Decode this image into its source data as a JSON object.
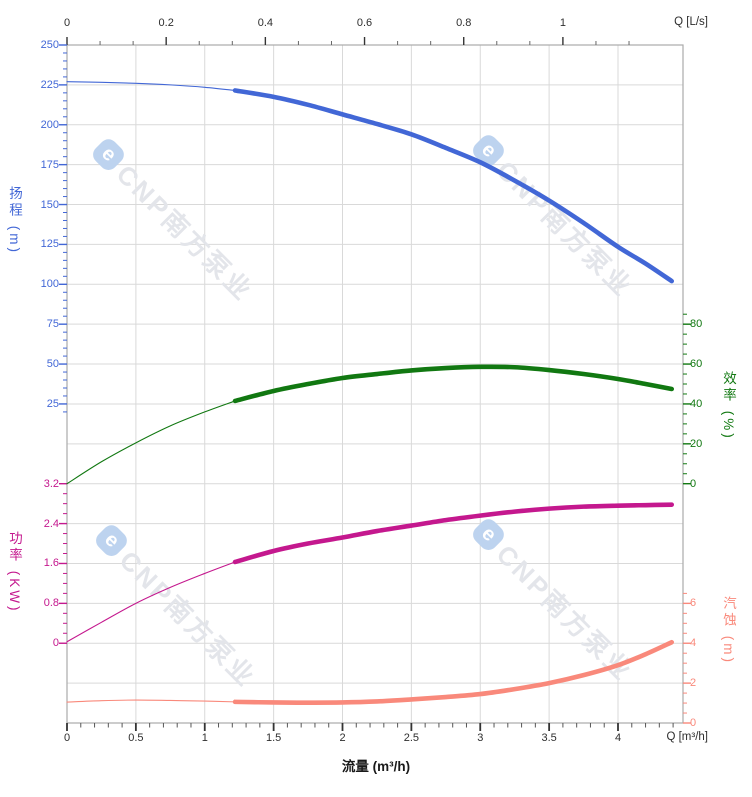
{
  "watermark": {
    "text": "CNP南方泵业",
    "logo_letter": "e",
    "text_color": "#e3e5ea",
    "logo_color": "#bdd3ef"
  },
  "chart_data": {
    "type": "line",
    "title": "",
    "grid": true,
    "thin_to_thick_at_q": 1.22,
    "x_bottom_axis": {
      "title": "流量 (m³/h)",
      "end_label": "Q [m³/h]",
      "range": [
        0,
        4.47
      ],
      "tick_values": [
        0,
        0.5,
        1,
        1.5,
        2,
        2.5,
        3,
        3.5,
        4
      ],
      "tick_labels": [
        "0",
        "0.5",
        "1",
        "1.5",
        "2",
        "2.5",
        "3",
        "3.5",
        "4"
      ],
      "minor_step": 0.1,
      "color": "#2e2e2e"
    },
    "x_top_axis": {
      "end_label": "Q [L/s]",
      "units_to_m3h": 3.6,
      "range": [
        0,
        1.24
      ],
      "tick_values": [
        0,
        0.2,
        0.4,
        0.6,
        0.8,
        1
      ],
      "tick_labels": [
        "0",
        "0.2",
        "0.4",
        "0.6",
        "0.8",
        "1"
      ],
      "minor_divisions": 3,
      "color": "#2e2e2e"
    },
    "y_axes": {
      "head": {
        "title": "扬程 (m)",
        "side": "left",
        "color": "#4267d6",
        "range": [
          0,
          250
        ],
        "tick_values": [
          250,
          225,
          200,
          175,
          150,
          125,
          100,
          75,
          50,
          25
        ],
        "tick_labels": [
          "250",
          "225",
          "200",
          "175",
          "150",
          "125",
          "100",
          "75",
          "50",
          "25"
        ],
        "minor_step": 5,
        "minor_range": [
          20,
          250
        ]
      },
      "power": {
        "title": "功率 (KW)",
        "side": "left",
        "color": "#c4188e",
        "range": [
          0,
          3.2
        ],
        "tick_values": [
          3.2,
          2.4,
          1.6,
          0.8,
          0
        ],
        "tick_labels": [
          "3.2",
          "2.4",
          "1.6",
          "0.8",
          "0"
        ],
        "minor_step": 0.2,
        "minor_range": [
          0,
          3.2
        ]
      },
      "efficiency": {
        "title": "效率 (%)",
        "side": "right",
        "color": "#117811",
        "range": [
          0,
          80
        ],
        "tick_values": [
          80,
          60,
          40,
          20,
          0
        ],
        "tick_labels": [
          "80",
          "60",
          "40",
          "20",
          "0"
        ],
        "minor_step": 5,
        "minor_range": [
          0,
          85
        ]
      },
      "npsh": {
        "title": "汽蚀 (m)",
        "side": "right",
        "color": "#f9897b",
        "range": [
          0,
          6
        ],
        "tick_values": [
          6,
          4,
          2,
          0
        ],
        "tick_labels": [
          "6",
          "4",
          "2",
          "0"
        ],
        "minor_step": 0.5,
        "minor_range": [
          0,
          6.5
        ]
      }
    },
    "series": [
      {
        "name": "head",
        "axis": "head",
        "color": "#4267d6",
        "points": [
          [
            0,
            227
          ],
          [
            0.25,
            226.6
          ],
          [
            0.5,
            226
          ],
          [
            0.75,
            225
          ],
          [
            1,
            223.5
          ],
          [
            1.22,
            221.5
          ],
          [
            1.5,
            217.5
          ],
          [
            1.75,
            212.5
          ],
          [
            2,
            206.5
          ],
          [
            2.25,
            200.5
          ],
          [
            2.5,
            194
          ],
          [
            2.75,
            185.5
          ],
          [
            3,
            176.5
          ],
          [
            3.25,
            165
          ],
          [
            3.5,
            152.5
          ],
          [
            3.75,
            138.5
          ],
          [
            4,
            123.5
          ],
          [
            4.2,
            113
          ],
          [
            4.39,
            102
          ]
        ]
      },
      {
        "name": "efficiency",
        "axis": "efficiency",
        "color": "#117811",
        "points": [
          [
            0,
            0
          ],
          [
            0.25,
            11
          ],
          [
            0.5,
            20.5
          ],
          [
            0.75,
            29
          ],
          [
            1,
            36
          ],
          [
            1.22,
            41.5
          ],
          [
            1.5,
            46.5
          ],
          [
            1.75,
            50
          ],
          [
            2,
            53
          ],
          [
            2.25,
            55
          ],
          [
            2.5,
            56.8
          ],
          [
            2.75,
            58
          ],
          [
            3,
            58.6
          ],
          [
            3.25,
            58.4
          ],
          [
            3.5,
            57
          ],
          [
            3.75,
            55
          ],
          [
            4,
            52.5
          ],
          [
            4.2,
            50
          ],
          [
            4.39,
            47.5
          ]
        ]
      },
      {
        "name": "power",
        "axis": "power",
        "color": "#c4188e",
        "points": [
          [
            0,
            0.03
          ],
          [
            0.25,
            0.42
          ],
          [
            0.5,
            0.8
          ],
          [
            0.75,
            1.12
          ],
          [
            1,
            1.4
          ],
          [
            1.22,
            1.63
          ],
          [
            1.5,
            1.85
          ],
          [
            1.75,
            2
          ],
          [
            2,
            2.12
          ],
          [
            2.25,
            2.25
          ],
          [
            2.5,
            2.36
          ],
          [
            2.75,
            2.47
          ],
          [
            3,
            2.56
          ],
          [
            3.25,
            2.64
          ],
          [
            3.5,
            2.7
          ],
          [
            3.75,
            2.74
          ],
          [
            4,
            2.76
          ],
          [
            4.2,
            2.77
          ],
          [
            4.39,
            2.78
          ]
        ]
      },
      {
        "name": "npsh",
        "axis": "npsh",
        "color": "#f9897b",
        "points": [
          [
            0,
            1.05
          ],
          [
            0.25,
            1.12
          ],
          [
            0.5,
            1.15
          ],
          [
            0.75,
            1.13
          ],
          [
            1,
            1.1
          ],
          [
            1.22,
            1.06
          ],
          [
            1.5,
            1.03
          ],
          [
            1.75,
            1.02
          ],
          [
            2,
            1.03
          ],
          [
            2.25,
            1.08
          ],
          [
            2.5,
            1.18
          ],
          [
            2.75,
            1.3
          ],
          [
            3,
            1.45
          ],
          [
            3.25,
            1.7
          ],
          [
            3.5,
            2
          ],
          [
            3.75,
            2.4
          ],
          [
            4,
            2.9
          ],
          [
            4.2,
            3.45
          ],
          [
            4.39,
            4.05
          ]
        ]
      }
    ]
  }
}
